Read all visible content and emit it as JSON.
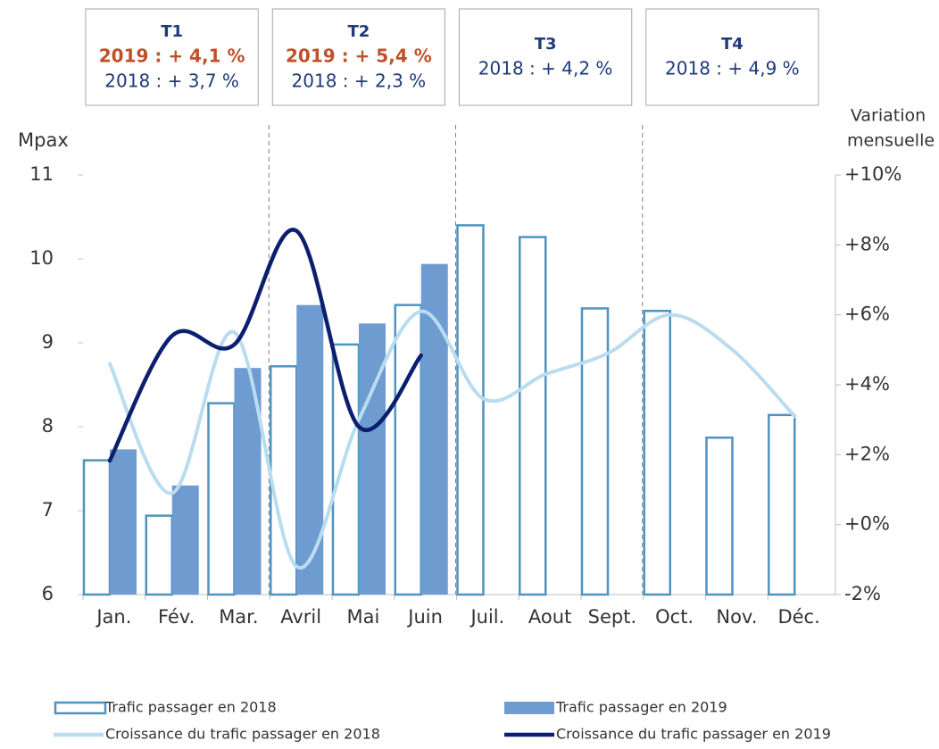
{
  "chart_data": {
    "type": "bar_line",
    "categories": [
      "Jan.",
      "Fév.",
      "Mar.",
      "Avril",
      "Mai",
      "Juin",
      "Juil.",
      "Aout",
      "Sept.",
      "Oct.",
      "Nov.",
      "Déc."
    ],
    "ylabel": "Mpax",
    "y2label": [
      "Variation",
      "mensuelle"
    ],
    "ylim": [
      6,
      11
    ],
    "yticks": [
      6,
      7,
      8,
      9,
      10,
      11
    ],
    "y2lim": [
      -2,
      10
    ],
    "y2ticks": [
      {
        "value": -2,
        "label": "-2%"
      },
      {
        "value": 0,
        "label": "+0%"
      },
      {
        "value": 2,
        "label": "+2%"
      },
      {
        "value": 4,
        "label": "+4%"
      },
      {
        "value": 6,
        "label": "+6%"
      },
      {
        "value": 8,
        "label": "+8%"
      },
      {
        "value": 10,
        "label": "+10%"
      }
    ],
    "series": [
      {
        "name": "Trafic passager en 2018",
        "kind": "bar_outline",
        "color": "#4f94c0",
        "values": [
          7.6,
          6.94,
          8.28,
          8.72,
          8.98,
          9.45,
          10.4,
          10.26,
          9.41,
          9.38,
          7.87,
          8.14
        ]
      },
      {
        "name": "Trafic passager en 2019",
        "kind": "bar_filled",
        "color": "#6e9bd0",
        "values": [
          7.73,
          7.3,
          8.7,
          9.45,
          9.23,
          9.94,
          null,
          null,
          null,
          null,
          null,
          null
        ]
      },
      {
        "name": "Croissance du trafic passager en 2018",
        "kind": "line",
        "axis": "y2",
        "color": "#b9dcef",
        "values": [
          4.6,
          0.9,
          5.5,
          -1.2,
          3.0,
          6.1,
          3.6,
          4.3,
          4.9,
          6.0,
          5.0,
          3.1
        ]
      },
      {
        "name": "Croissance du trafic passager en 2019",
        "kind": "line",
        "axis": "y2",
        "color": "#0c1f6e",
        "values": [
          1.83,
          5.4,
          5.15,
          8.4,
          2.8,
          4.84,
          null,
          null,
          null,
          null,
          null,
          null
        ]
      }
    ],
    "quarters": [
      {
        "label": "T1",
        "y2019": "2019 : + 4,1 %",
        "y2018": "2018 : + 3,7 %"
      },
      {
        "label": "T2",
        "y2019": "2019 : + 5,4 %",
        "y2018": "2018 : + 2,3 %"
      },
      {
        "label": "T3",
        "y2018": "2018 : + 4,2 %"
      },
      {
        "label": "T4",
        "y2018": "2018 : + 4,9 %"
      }
    ]
  }
}
